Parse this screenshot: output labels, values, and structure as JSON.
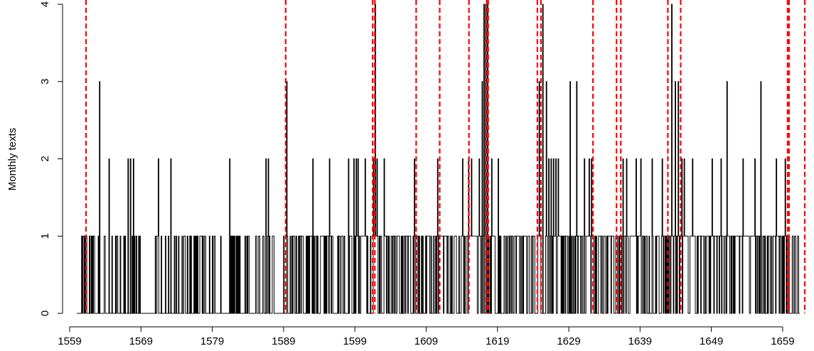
{
  "chart_data": {
    "type": "line",
    "title": "",
    "xlabel": "",
    "ylabel": "Monthly texts",
    "xlim": [
      1559.3,
      1662.0
    ],
    "ylim": [
      0,
      4
    ],
    "x_ticks": [
      1559,
      1569,
      1579,
      1589,
      1599,
      1609,
      1619,
      1629,
      1639,
      1649,
      1659
    ],
    "y_ticks": [
      0,
      1,
      2,
      3,
      4
    ],
    "grid": false,
    "legend": "none",
    "series": [
      {
        "style": "step",
        "color": "#000000",
        "points": [
          [
            1563.2,
            3
          ],
          [
            1563.9,
            1
          ],
          [
            1564.5,
            2
          ],
          [
            1566.1,
            1
          ],
          [
            1567.2,
            2
          ],
          [
            1567.5,
            2
          ],
          [
            1567.9,
            2
          ],
          [
            1568.3,
            1
          ],
          [
            1571.4,
            2
          ],
          [
            1573.2,
            2
          ],
          [
            1581.4,
            2
          ],
          [
            1586.5,
            2
          ],
          [
            1586.8,
            2
          ],
          [
            1589.4,
            3
          ],
          [
            1593.1,
            2
          ],
          [
            1595.4,
            2
          ],
          [
            1598.1,
            2
          ],
          [
            1598.8,
            2
          ],
          [
            1599.2,
            2
          ],
          [
            1599.4,
            2
          ],
          [
            1600.4,
            2
          ],
          [
            1601.6,
            2
          ],
          [
            1601.8,
            4
          ],
          [
            1602.1,
            2
          ],
          [
            1603.1,
            2
          ],
          [
            1607.3,
            2
          ],
          [
            1610.6,
            2
          ],
          [
            1614.1,
            2
          ],
          [
            1614.9,
            2
          ],
          [
            1615.3,
            2
          ],
          [
            1616.4,
            2
          ],
          [
            1616.8,
            3
          ],
          [
            1617.1,
            4
          ],
          [
            1617.3,
            4
          ],
          [
            1617.6,
            4
          ],
          [
            1618.2,
            2
          ],
          [
            1619.1,
            2
          ],
          [
            1624.8,
            3
          ],
          [
            1625.3,
            4
          ],
          [
            1625.8,
            3
          ],
          [
            1626.2,
            2
          ],
          [
            1626.5,
            2
          ],
          [
            1626.8,
            2
          ],
          [
            1627.2,
            2
          ],
          [
            1627.5,
            2
          ],
          [
            1629.2,
            3
          ],
          [
            1630.1,
            3
          ],
          [
            1631.2,
            2
          ],
          [
            1631.8,
            2
          ],
          [
            1632.2,
            2
          ],
          [
            1636.6,
            2
          ],
          [
            1637.1,
            2
          ],
          [
            1638.4,
            2
          ],
          [
            1639.1,
            2
          ],
          [
            1640.7,
            2
          ],
          [
            1642.1,
            2
          ],
          [
            1643.4,
            4
          ],
          [
            1643.9,
            3
          ],
          [
            1644.3,
            3
          ],
          [
            1644.8,
            2
          ],
          [
            1645.2,
            2
          ],
          [
            1646.3,
            2
          ],
          [
            1649.1,
            2
          ],
          [
            1650.3,
            2
          ],
          [
            1651.2,
            3
          ],
          [
            1653.4,
            2
          ],
          [
            1655.1,
            2
          ],
          [
            1655.9,
            3
          ],
          [
            1658.1,
            2
          ],
          [
            1659.3,
            2
          ]
        ]
      }
    ],
    "vlines": {
      "color": "#ff0000",
      "style": "dashed",
      "x": [
        1561.3,
        1589.3,
        1601.5,
        1601.8,
        1607.6,
        1610.9,
        1615.0,
        1617.5,
        1617.7,
        1624.6,
        1625.1,
        1632.4,
        1635.7,
        1636.3,
        1642.9,
        1644.7,
        1659.7,
        1659.9,
        1662.2
      ]
    }
  }
}
